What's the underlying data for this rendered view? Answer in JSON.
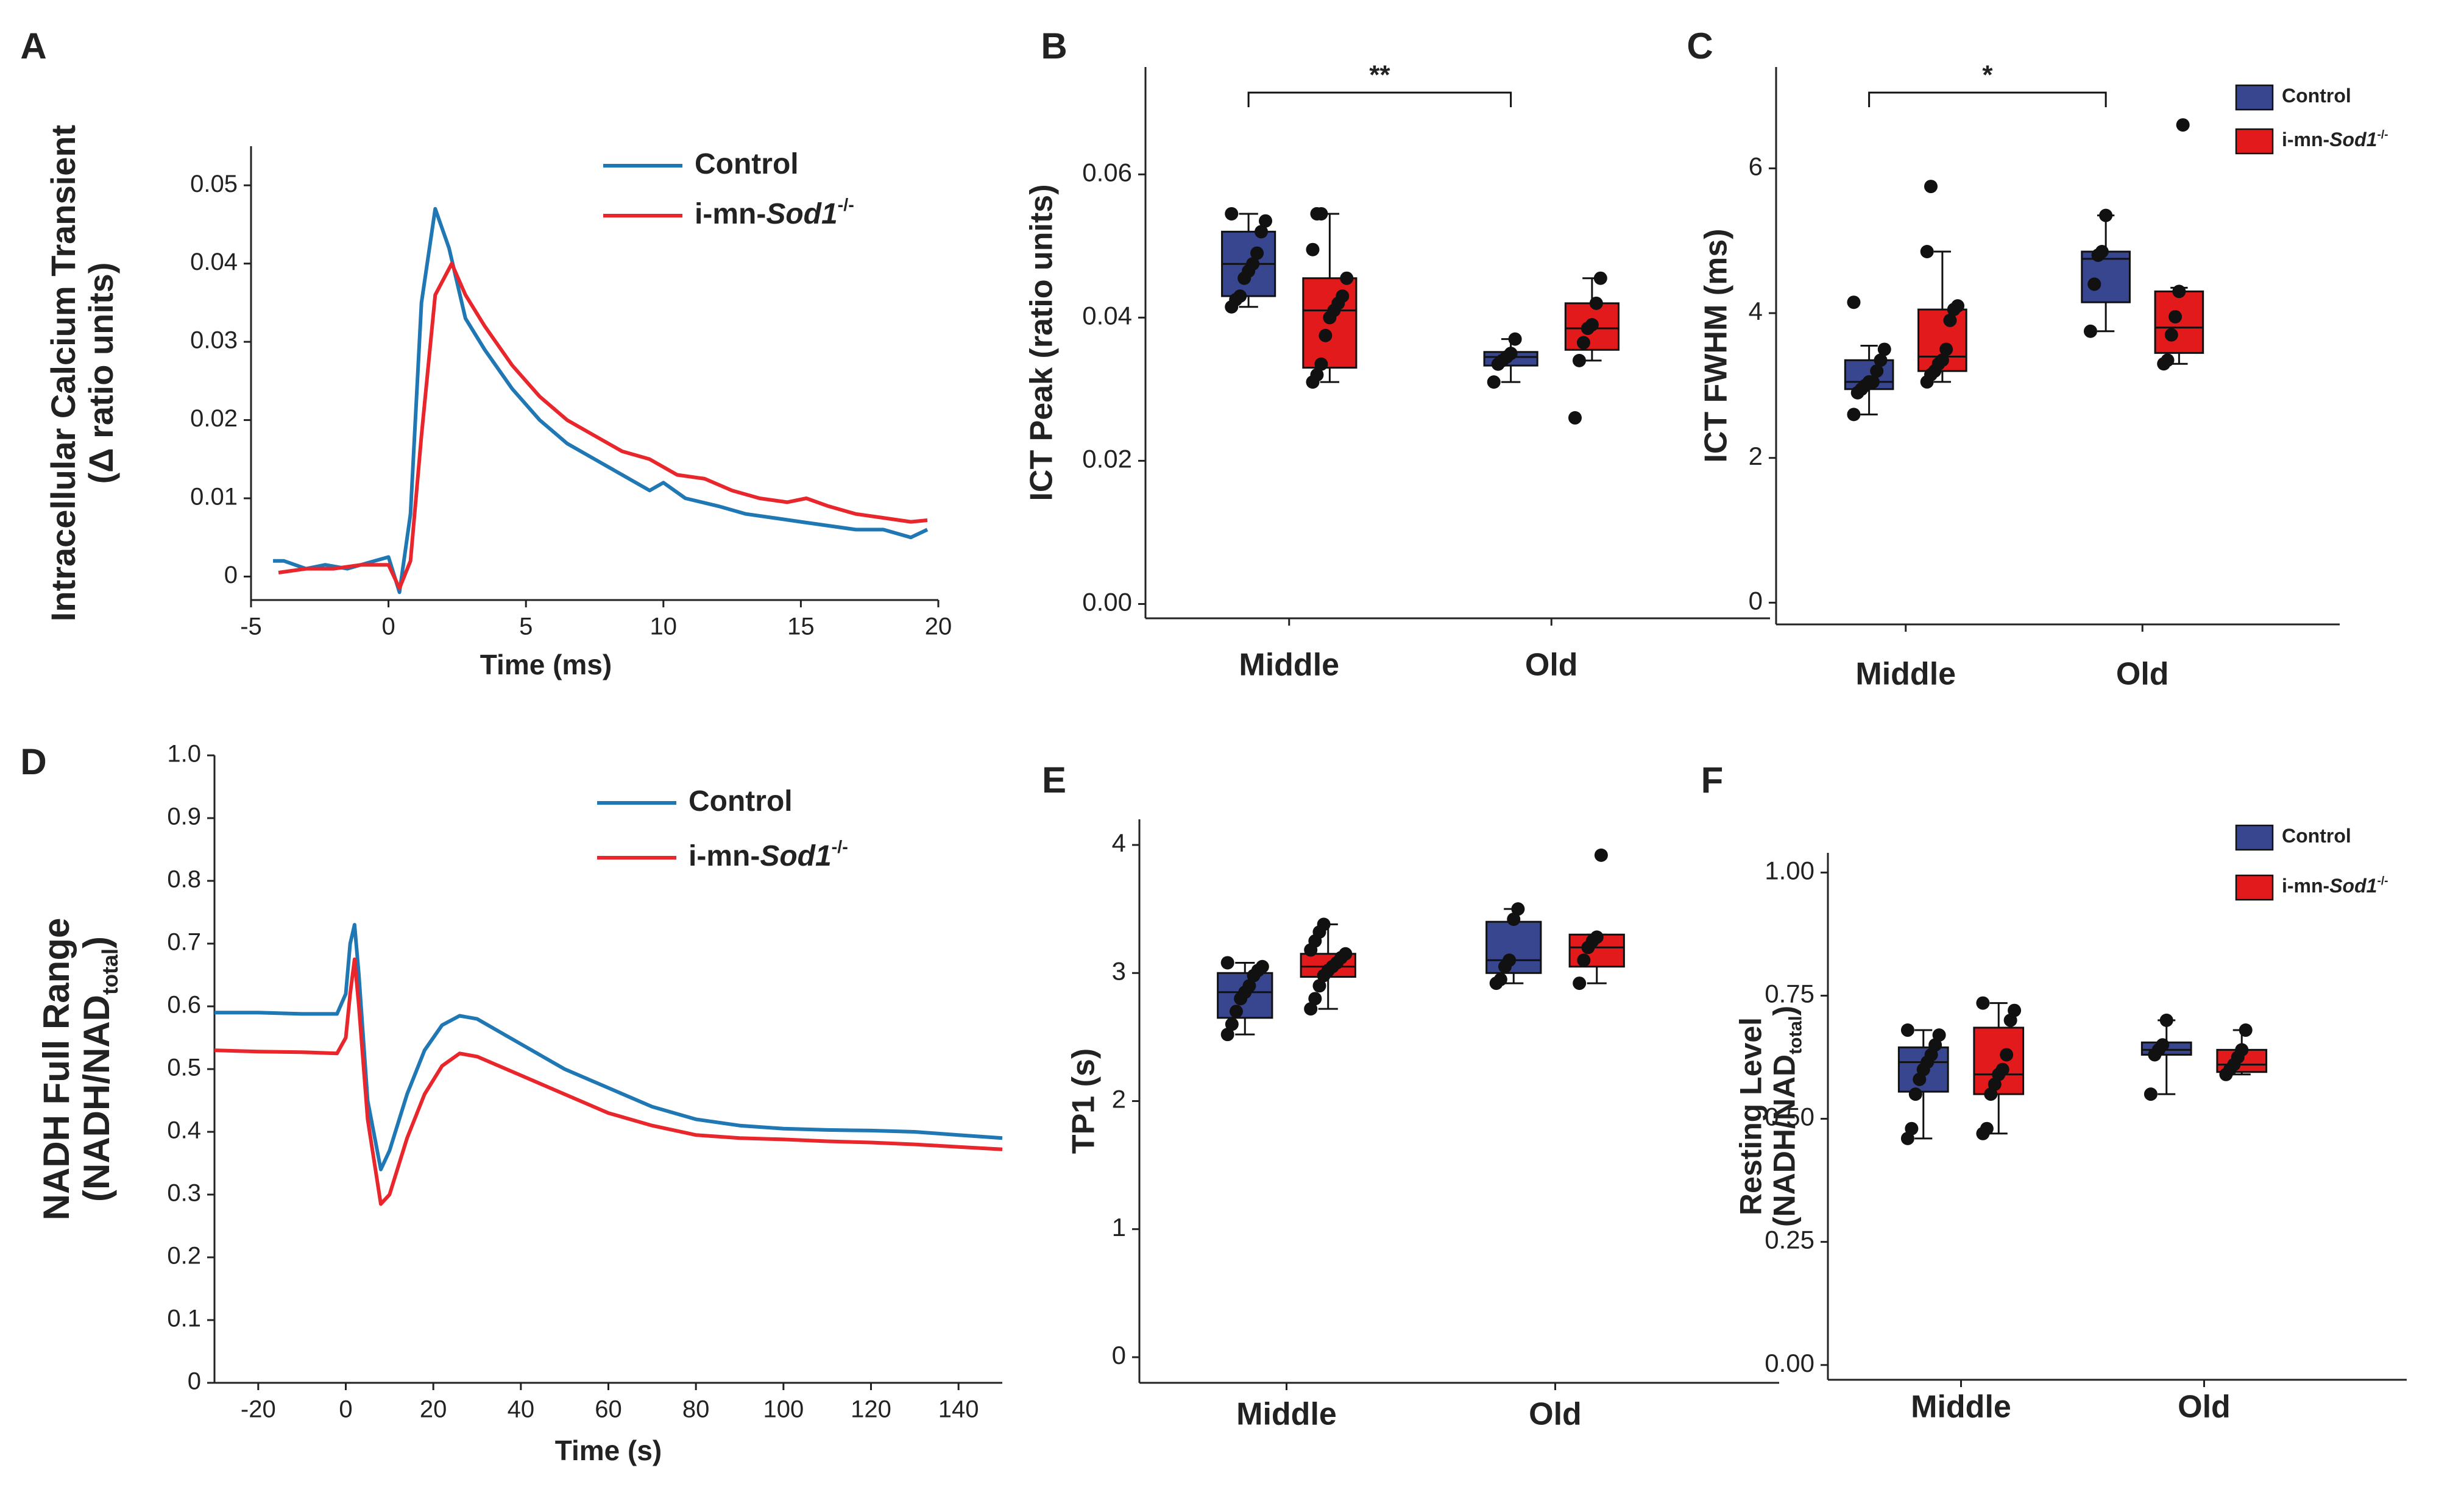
{
  "colors": {
    "control": "#1f77b4",
    "sod1": "#e8262b",
    "box_control": "#38458f",
    "box_sod1": "#e31a1c",
    "axis": "#222222"
  },
  "chart_data": [
    {
      "id": "A",
      "panel_label": "A",
      "type": "line",
      "title": "",
      "ylabel_line1": "Intracellular Calcium Transient",
      "ylabel_line2": "(Δ ratio units)",
      "xlabel": "Time (ms)",
      "xlim": [
        -5,
        20
      ],
      "ylim": [
        -0.003,
        0.055
      ],
      "xticks": [
        -5,
        0,
        5,
        10,
        15,
        20
      ],
      "xtick_labels": [
        "-5",
        "0",
        "5",
        "10",
        "15",
        "20"
      ],
      "yticks": [
        0,
        0.01,
        0.02,
        0.03,
        0.04,
        0.05
      ],
      "ytick_labels": [
        "0",
        "0.01",
        "0.02",
        "0.03",
        "0.04",
        "0.05"
      ],
      "legend": {
        "position": "top-right",
        "entries": [
          {
            "name": "Control",
            "italic_suffix": "",
            "superscript": ""
          },
          {
            "name": "i-mn-",
            "italic_suffix": "Sod1",
            "superscript": "-/-"
          }
        ]
      },
      "series": [
        {
          "name": "Control",
          "x": [
            -4.2,
            -3.8,
            -3,
            -2.3,
            -1.5,
            -0.5,
            0,
            0.4,
            0.8,
            1.2,
            1.7,
            2.2,
            2.8,
            3.5,
            4.5,
            5.5,
            6.5,
            7.5,
            8.5,
            9.5,
            10,
            10.8,
            12,
            13,
            14,
            15,
            16,
            17,
            18,
            19,
            19.6
          ],
          "y": [
            0.002,
            0.002,
            0.001,
            0.0015,
            0.001,
            0.002,
            0.0025,
            -0.002,
            0.008,
            0.035,
            0.047,
            0.042,
            0.033,
            0.029,
            0.024,
            0.02,
            0.017,
            0.015,
            0.013,
            0.011,
            0.012,
            0.01,
            0.009,
            0.008,
            0.0075,
            0.007,
            0.0065,
            0.006,
            0.006,
            0.005,
            0.006
          ]
        },
        {
          "name": "i-mn-Sod1-/-",
          "x": [
            -4,
            -3,
            -2,
            -1,
            0,
            0.4,
            0.8,
            1.2,
            1.7,
            2.3,
            2.8,
            3.5,
            4.5,
            5.5,
            6.5,
            7.5,
            8.5,
            9.5,
            10.5,
            11.5,
            12.5,
            13.5,
            14.5,
            15.2,
            16,
            17,
            18,
            19,
            19.6
          ],
          "y": [
            0.0005,
            0.001,
            0.001,
            0.0015,
            0.0015,
            -0.0015,
            0.002,
            0.018,
            0.036,
            0.04,
            0.036,
            0.032,
            0.027,
            0.023,
            0.02,
            0.018,
            0.016,
            0.015,
            0.013,
            0.0125,
            0.011,
            0.01,
            0.0095,
            0.01,
            0.009,
            0.008,
            0.0075,
            0.007,
            0.0072
          ]
        }
      ]
    },
    {
      "id": "B",
      "panel_label": "B",
      "type": "box",
      "ylabel": "ICT Peak (ratio units)",
      "xlabel": "",
      "ylim": [
        -0.002,
        0.075
      ],
      "yticks": [
        0,
        0.02,
        0.04,
        0.06
      ],
      "ytick_labels": [
        "0.00",
        "0.02",
        "0.04",
        "0.06"
      ],
      "categories": [
        "Middle",
        "Old"
      ],
      "series": [
        {
          "name": "Control",
          "boxes": [
            {
              "min": 0.0415,
              "q1": 0.043,
              "median": 0.0475,
              "q3": 0.052,
              "max": 0.0545,
              "points": [
                0.0415,
                0.0425,
                0.043,
                0.0455,
                0.0465,
                0.0475,
                0.049,
                0.052,
                0.0535,
                0.0545
              ]
            },
            {
              "min": 0.031,
              "q1": 0.0333,
              "median": 0.0345,
              "q3": 0.0352,
              "max": 0.037,
              "points": [
                0.031,
                0.0335,
                0.034,
                0.0345,
                0.035,
                0.037
              ]
            }
          ]
        },
        {
          "name": "i-mn-Sod1-/-",
          "boxes": [
            {
              "min": 0.031,
              "q1": 0.033,
              "median": 0.041,
              "q3": 0.0455,
              "max": 0.0545,
              "points": [
                0.031,
                0.032,
                0.0335,
                0.0375,
                0.04,
                0.041,
                0.042,
                0.043,
                0.0455,
                0.0495,
                0.0545,
                0.0545
              ]
            },
            {
              "min": 0.034,
              "q1": 0.0355,
              "median": 0.0385,
              "q3": 0.042,
              "max": 0.0455,
              "points": [
                0.026,
                0.034,
                0.0365,
                0.0385,
                0.039,
                0.042,
                0.0455
              ]
            }
          ]
        }
      ],
      "significance": {
        "label": "**",
        "from": "Middle-Control",
        "to": "Old-Control"
      }
    },
    {
      "id": "C",
      "panel_label": "C",
      "type": "box",
      "ylabel": "ICT FWHM (ms)",
      "xlabel": "",
      "ylim": [
        -0.3,
        7.4
      ],
      "yticks": [
        0,
        2,
        4,
        6
      ],
      "ytick_labels": [
        "0",
        "2",
        "4",
        "6"
      ],
      "categories": [
        "Middle",
        "Old"
      ],
      "legend": {
        "position": "top-right",
        "entries": [
          {
            "name": "Control",
            "italic_suffix": "",
            "superscript": ""
          },
          {
            "name": "i-mn-",
            "italic_suffix": "Sod1",
            "superscript": "-/-"
          }
        ]
      },
      "series": [
        {
          "name": "Control",
          "boxes": [
            {
              "min": 2.6,
              "q1": 2.95,
              "median": 3.05,
              "q3": 3.35,
              "max": 3.55,
              "points": [
                2.6,
                2.9,
                2.95,
                3.0,
                3.05,
                3.05,
                3.2,
                3.35,
                3.5,
                4.15
              ]
            },
            {
              "min": 3.75,
              "q1": 4.15,
              "median": 4.75,
              "q3": 4.85,
              "max": 5.35,
              "points": [
                3.75,
                4.4,
                4.8,
                4.85,
                5.35
              ]
            }
          ]
        },
        {
          "name": "i-mn-Sod1-/-",
          "boxes": [
            {
              "min": 3.05,
              "q1": 3.2,
              "median": 3.4,
              "q3": 4.05,
              "max": 4.85,
              "points": [
                3.05,
                3.15,
                3.2,
                3.3,
                3.35,
                3.5,
                3.9,
                4.05,
                4.1,
                4.85,
                5.75
              ]
            },
            {
              "min": 3.3,
              "q1": 3.45,
              "median": 3.8,
              "q3": 4.3,
              "max": 4.35,
              "points": [
                3.3,
                3.35,
                3.7,
                3.95,
                4.3,
                6.6
              ]
            }
          ]
        }
      ],
      "significance": {
        "label": "*",
        "from": "Middle-Control",
        "to": "Old-Control"
      }
    },
    {
      "id": "D",
      "panel_label": "D",
      "type": "line",
      "ylabel_line1": "NADH Full Range",
      "ylabel_line2": "(NADH/NAD",
      "ylabel_sub": "total",
      "ylabel_close": ")",
      "xlabel": "Time (s)",
      "xlim": [
        -30,
        150
      ],
      "ylim": [
        0,
        1.0
      ],
      "xticks": [
        -20,
        0,
        20,
        40,
        60,
        80,
        100,
        120,
        140
      ],
      "xtick_labels": [
        "-20",
        "0",
        "20",
        "40",
        "60",
        "80",
        "100",
        "120",
        "140"
      ],
      "yticks": [
        0,
        0.1,
        0.2,
        0.3,
        0.4,
        0.5,
        0.6,
        0.7,
        0.8,
        0.9,
        1.0
      ],
      "ytick_labels": [
        "0",
        "0.1",
        "0.2",
        "0.3",
        "0.4",
        "0.5",
        "0.6",
        "0.7",
        "0.8",
        "0.9",
        "1.0"
      ],
      "legend": {
        "position": "top-right",
        "entries": [
          {
            "name": "Control",
            "italic_suffix": "",
            "superscript": ""
          },
          {
            "name": "i-mn-",
            "italic_suffix": "Sod1",
            "superscript": "-/-"
          }
        ]
      },
      "series": [
        {
          "name": "Control",
          "x": [
            -30,
            -20,
            -10,
            -2,
            0,
            1,
            2,
            3,
            5,
            8,
            10,
            14,
            18,
            22,
            26,
            30,
            40,
            50,
            60,
            70,
            80,
            90,
            100,
            110,
            120,
            130,
            140,
            150
          ],
          "y": [
            0.59,
            0.59,
            0.588,
            0.588,
            0.62,
            0.7,
            0.73,
            0.65,
            0.45,
            0.34,
            0.37,
            0.46,
            0.53,
            0.57,
            0.585,
            0.58,
            0.54,
            0.5,
            0.47,
            0.44,
            0.42,
            0.41,
            0.405,
            0.403,
            0.402,
            0.4,
            0.395,
            0.39
          ]
        },
        {
          "name": "i-mn-Sod1-/-",
          "x": [
            -30,
            -20,
            -10,
            -2,
            0,
            1,
            2,
            3,
            5,
            8,
            10,
            14,
            18,
            22,
            26,
            30,
            40,
            50,
            60,
            70,
            80,
            90,
            100,
            110,
            120,
            130,
            140,
            150
          ],
          "y": [
            0.53,
            0.528,
            0.527,
            0.525,
            0.55,
            0.62,
            0.675,
            0.6,
            0.42,
            0.285,
            0.3,
            0.39,
            0.46,
            0.505,
            0.525,
            0.52,
            0.49,
            0.46,
            0.43,
            0.41,
            0.395,
            0.39,
            0.388,
            0.385,
            0.383,
            0.38,
            0.376,
            0.372
          ]
        }
      ]
    },
    {
      "id": "E",
      "panel_label": "E",
      "type": "box",
      "ylabel": "TP1 (s)",
      "xlabel": "",
      "ylim": [
        -0.2,
        4.2
      ],
      "yticks": [
        0,
        1,
        2,
        3,
        4
      ],
      "ytick_labels": [
        "0",
        "1",
        "2",
        "3",
        "4"
      ],
      "categories": [
        "Middle",
        "Old"
      ],
      "series": [
        {
          "name": "Control",
          "boxes": [
            {
              "min": 2.52,
              "q1": 2.65,
              "median": 2.85,
              "q3": 3.0,
              "max": 3.08,
              "points": [
                2.52,
                2.6,
                2.7,
                2.8,
                2.85,
                2.9,
                2.98,
                3.02,
                3.05,
                3.08
              ]
            },
            {
              "min": 2.92,
              "q1": 3.0,
              "median": 3.1,
              "q3": 3.4,
              "max": 3.5,
              "points": [
                2.92,
                2.95,
                3.05,
                3.1,
                3.42,
                3.5
              ]
            }
          ]
        },
        {
          "name": "i-mn-Sod1-/-",
          "boxes": [
            {
              "min": 2.72,
              "q1": 2.97,
              "median": 3.05,
              "q3": 3.15,
              "max": 3.38,
              "points": [
                2.72,
                2.8,
                2.9,
                2.98,
                3.02,
                3.05,
                3.08,
                3.12,
                3.15,
                3.18,
                3.25,
                3.32,
                3.38
              ]
            },
            {
              "min": 2.92,
              "q1": 3.05,
              "median": 3.2,
              "q3": 3.3,
              "max": 3.3,
              "points": [
                2.92,
                3.1,
                3.2,
                3.25,
                3.28,
                3.92
              ]
            }
          ]
        }
      ]
    },
    {
      "id": "F",
      "panel_label": "F",
      "type": "box",
      "ylabel_line1": "Resting Level",
      "ylabel_line2": "(NADH/NAD",
      "ylabel_sub": "total",
      "ylabel_close": ")",
      "xlabel": "",
      "ylim": [
        -0.03,
        1.04
      ],
      "yticks": [
        0,
        0.25,
        0.5,
        0.75,
        1.0
      ],
      "ytick_labels": [
        "0.00",
        "0.25",
        "0.50",
        "0.75",
        "1.00"
      ],
      "categories": [
        "Middle",
        "Old"
      ],
      "legend": {
        "position": "top-right",
        "entries": [
          {
            "name": "Control",
            "italic_suffix": "",
            "superscript": ""
          },
          {
            "name": "i-mn-",
            "italic_suffix": "Sod1",
            "superscript": "-/-"
          }
        ]
      },
      "series": [
        {
          "name": "Control",
          "boxes": [
            {
              "min": 0.46,
              "q1": 0.555,
              "median": 0.615,
              "q3": 0.645,
              "max": 0.68,
              "points": [
                0.46,
                0.48,
                0.55,
                0.58,
                0.6,
                0.615,
                0.63,
                0.65,
                0.67,
                0.68
              ]
            },
            {
              "min": 0.55,
              "q1": 0.63,
              "median": 0.64,
              "q3": 0.655,
              "max": 0.7,
              "points": [
                0.55,
                0.63,
                0.64,
                0.65,
                0.7
              ]
            }
          ]
        },
        {
          "name": "i-mn-Sod1-/-",
          "boxes": [
            {
              "min": 0.47,
              "q1": 0.55,
              "median": 0.59,
              "q3": 0.685,
              "max": 0.735,
              "points": [
                0.47,
                0.48,
                0.55,
                0.57,
                0.59,
                0.6,
                0.63,
                0.7,
                0.72,
                0.735
              ]
            },
            {
              "min": 0.59,
              "q1": 0.595,
              "median": 0.61,
              "q3": 0.64,
              "max": 0.68,
              "points": [
                0.59,
                0.6,
                0.61,
                0.625,
                0.64,
                0.68
              ]
            }
          ]
        }
      ]
    }
  ]
}
